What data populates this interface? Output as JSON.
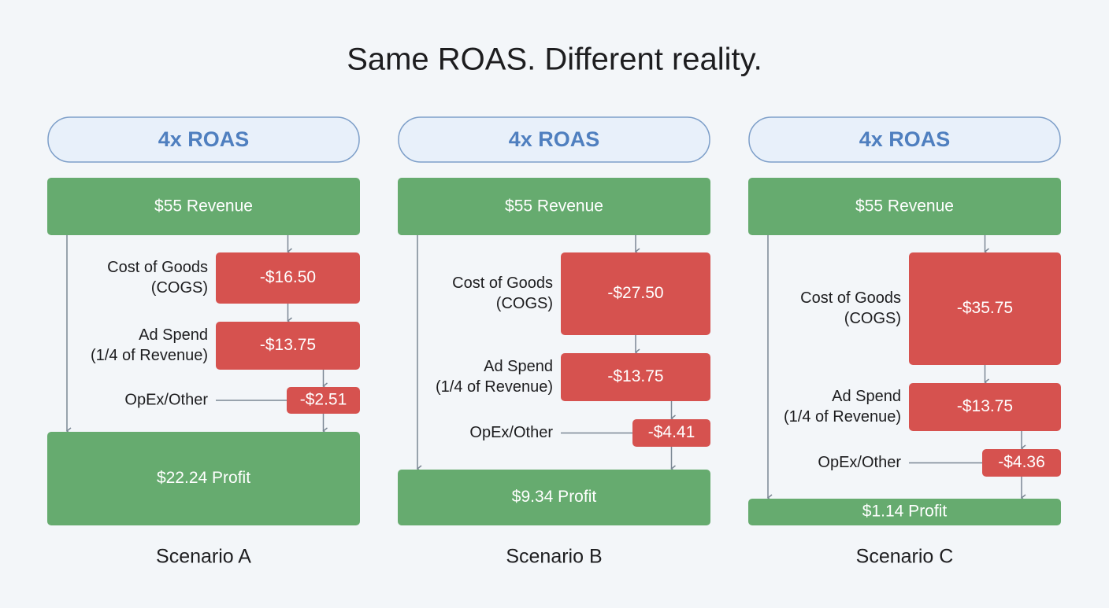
{
  "title": "Same ROAS. Different reality.",
  "scenarios": [
    {
      "roas": "4x ROAS",
      "revenue": "$55 Revenue",
      "cogs_label": [
        "Cost of Goods",
        "(COGS)"
      ],
      "cogs": "-$16.50",
      "ad_label": [
        "Ad Spend",
        "(1/4 of Revenue)"
      ],
      "ad": "-$13.75",
      "opex_label": "OpEx/Other",
      "opex": "-$2.51",
      "profit": "$22.24 Profit",
      "name": "Scenario A"
    },
    {
      "roas": "4x ROAS",
      "revenue": "$55 Revenue",
      "cogs_label": [
        "Cost of Goods",
        "(COGS)"
      ],
      "cogs": "-$27.50",
      "ad_label": [
        "Ad Spend",
        "(1/4 of Revenue)"
      ],
      "ad": "-$13.75",
      "opex_label": "OpEx/Other",
      "opex": "-$4.41",
      "profit": "$9.34 Profit",
      "name": "Scenario B"
    },
    {
      "roas": "4x ROAS",
      "revenue": "$55 Revenue",
      "cogs_label": [
        "Cost of Goods",
        "(COGS)"
      ],
      "cogs": "-$35.75",
      "ad_label": [
        "Ad Spend",
        "(1/4 of Revenue)"
      ],
      "ad": "-$13.75",
      "opex_label": "OpEx/Other",
      "opex": "-$4.36",
      "profit": "$1.14 Profit",
      "name": "Scenario C"
    }
  ]
}
